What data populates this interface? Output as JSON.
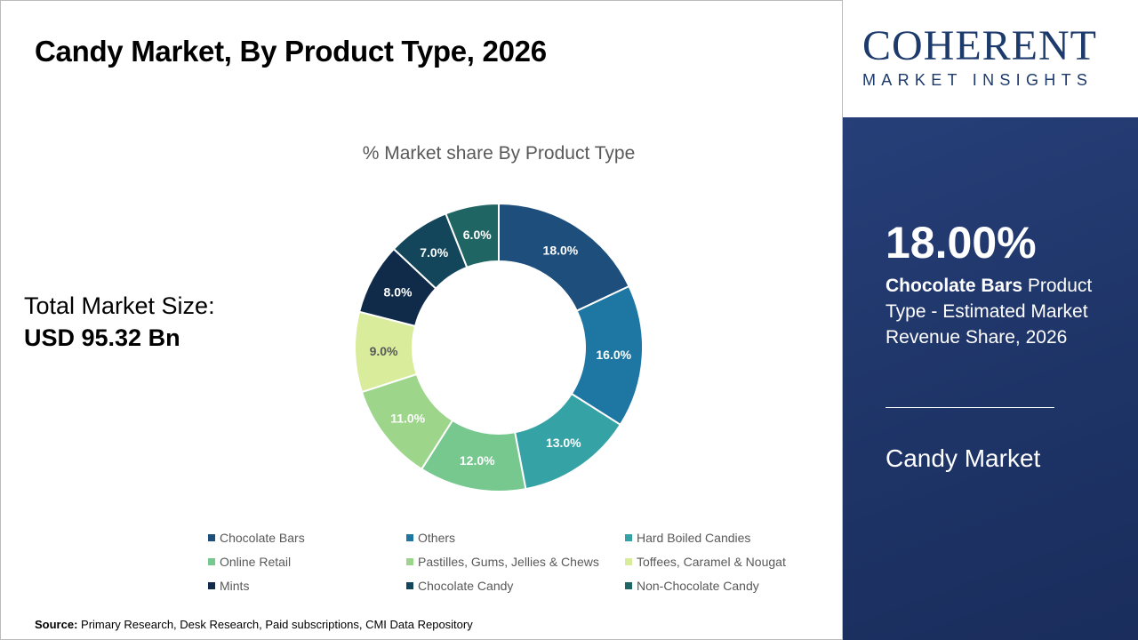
{
  "title": "Candy Market, By Product Type, 2026",
  "total_market": {
    "label": "Total Market Size:",
    "value": "USD 95.32 Bn"
  },
  "source": {
    "label": "Source:",
    "text": " Primary Research, Desk Research, Paid subscriptions, CMI Data Repository"
  },
  "logo": {
    "line1": "COHERENT",
    "line2": "MARKET INSIGHTS"
  },
  "highlight": {
    "value": "18.00%",
    "bold": "Chocolate Bars",
    "rest": " Product Type - Estimated Market Revenue Share, 2026",
    "market": "Candy Market"
  },
  "chart_data": {
    "type": "pie",
    "donut": true,
    "title": "% Market share By Product Type",
    "legend_position": "bottom",
    "categories": [
      "Chocolate Bars",
      "Others",
      "Hard Boiled Candies",
      "Online Retail",
      "Pastilles, Gums, Jellies & Chews",
      "Toffees, Caramel & Nougat",
      "Mints",
      "Chocolate Candy",
      "Non-Chocolate Candy"
    ],
    "values": [
      18,
      16,
      13,
      12,
      11,
      9,
      8,
      7,
      6
    ],
    "labels": [
      "18.0%",
      "16.0%",
      "13.0%",
      "12.0%",
      "11.0%",
      "9.0%",
      "8.0%",
      "7.0%",
      "6.0%"
    ],
    "colors": [
      "#1d4e7c",
      "#1e76a3",
      "#35a2a5",
      "#76c88f",
      "#9dd68a",
      "#d9ec9c",
      "#0f2b49",
      "#13465b",
      "#1f6563"
    ]
  }
}
